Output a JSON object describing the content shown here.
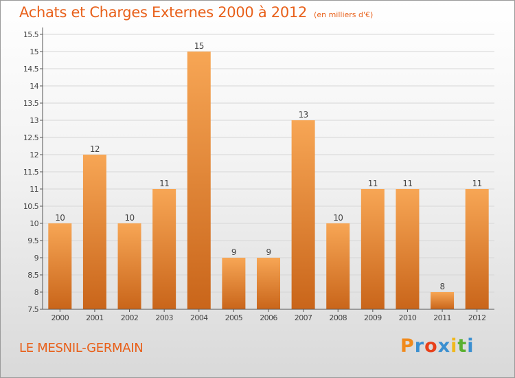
{
  "header": {
    "title": "Achats et Charges Externes 2000 à 2012",
    "subtitle": "(en milliers d'€)"
  },
  "footer": {
    "place": "LE MESNIL-GERMAIN",
    "logo_letters": [
      "P",
      "r",
      "o",
      "x",
      "i",
      "t",
      "i"
    ],
    "logo_colors": [
      "#f08a1c",
      "#3a8fd0",
      "#e8401a",
      "#3a8fd0",
      "#f0b81c",
      "#5ab030",
      "#3a8fd0"
    ]
  },
  "chart_data": {
    "type": "bar",
    "title": "Achats et Charges Externes 2000 à 2012",
    "subtitle": "(en milliers d'€)",
    "categories": [
      "2000",
      "2001",
      "2002",
      "2003",
      "2004",
      "2005",
      "2006",
      "2007",
      "2008",
      "2009",
      "2010",
      "2011",
      "2012"
    ],
    "values": [
      10,
      12,
      10,
      11,
      15,
      9,
      9,
      13,
      10,
      11,
      11,
      8,
      11
    ],
    "ylim": [
      7.5,
      15.5
    ],
    "yticks": [
      "7.5",
      "8",
      "8.5",
      "9",
      "9.5",
      "10",
      "10.5",
      "11",
      "11.5",
      "12",
      "12.5",
      "13",
      "13.5",
      "14",
      "14.5",
      "15",
      "15.5"
    ],
    "grid": true,
    "bar_color": "#e87d22",
    "bar_color_light": "#f7a655",
    "bar_color_dark": "#c9651a",
    "text_color": "#e8601a"
  }
}
